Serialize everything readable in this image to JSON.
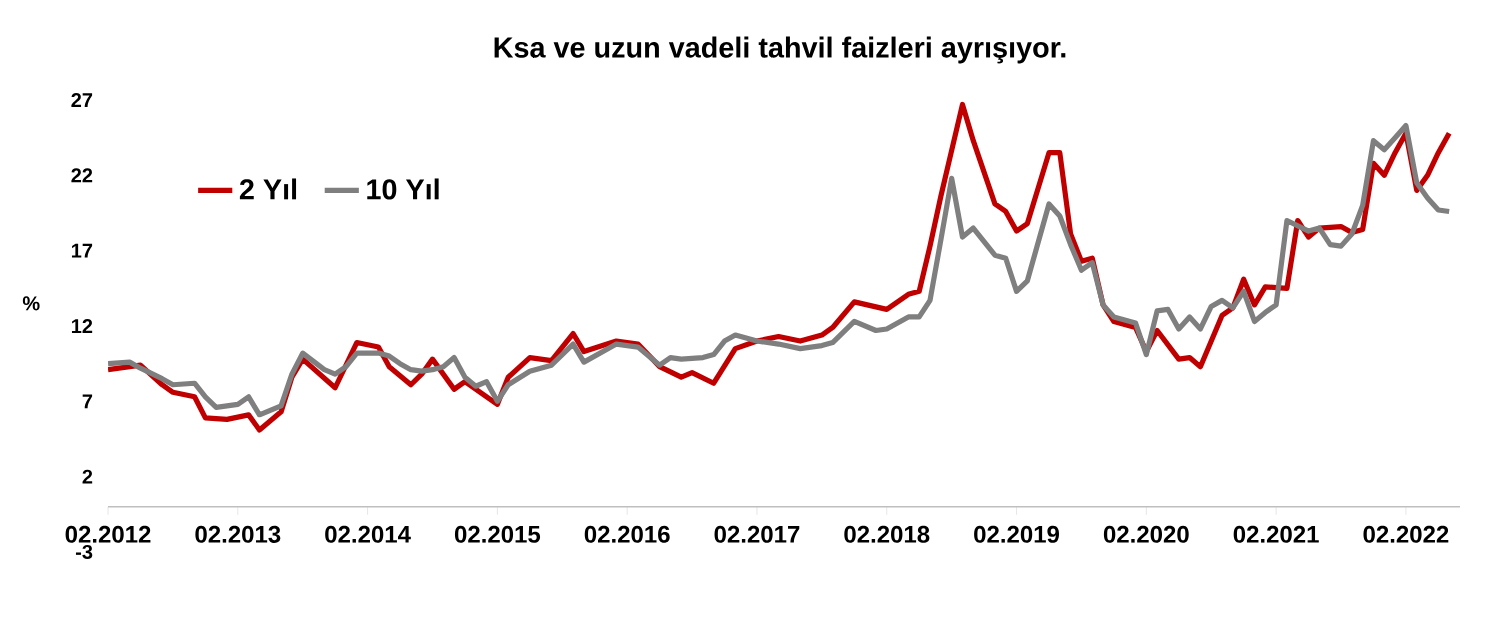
{
  "chart_data": {
    "type": "line",
    "title": "Ksa ve uzun vadeli tahvil faizleri ayrışıyor.",
    "ylabel": "%",
    "xlim": [
      "2012-02",
      "2022-07"
    ],
    "ylim": [
      -3,
      27
    ],
    "yticks": [
      -3,
      2,
      7,
      12,
      17,
      22,
      27
    ],
    "xticks": [
      {
        "value": "2012-02",
        "label": "02.2012"
      },
      {
        "value": "2013-02",
        "label": "02.2013"
      },
      {
        "value": "2014-02",
        "label": "02.2014"
      },
      {
        "value": "2015-02",
        "label": "02.2015"
      },
      {
        "value": "2016-02",
        "label": "02.2016"
      },
      {
        "value": "2017-02",
        "label": "02.2017"
      },
      {
        "value": "2018-02",
        "label": "02.2018"
      },
      {
        "value": "2019-02",
        "label": "02.2019"
      },
      {
        "value": "2020-02",
        "label": "02.2020"
      },
      {
        "value": "2021-02",
        "label": "02.2021"
      },
      {
        "value": "2022-02",
        "label": "02.2022"
      }
    ],
    "legend": "top left",
    "grid": false,
    "marker": "none",
    "line_style": "solid",
    "series": [
      {
        "name": "2 Yıl",
        "color": "#c00000",
        "x": [
          "2012-02",
          "2012-05",
          "2012-07",
          "2012-08",
          "2012-10",
          "2012-11",
          "2013-01",
          "2013-03",
          "2013-04",
          "2013-06",
          "2013-07",
          "2013-08",
          "2013-11",
          "2014-01",
          "2014-03",
          "2014-04",
          "2014-06",
          "2014-07",
          "2014-08",
          "2014-10",
          "2014-11",
          "2015-02",
          "2015-03",
          "2015-05",
          "2015-07",
          "2015-09",
          "2015-10",
          "2016-01",
          "2016-03",
          "2016-05",
          "2016-07",
          "2016-08",
          "2016-10",
          "2016-12",
          "2017-02",
          "2017-04",
          "2017-06",
          "2017-08",
          "2017-09",
          "2017-11",
          "2018-02",
          "2018-04",
          "2018-05",
          "2018-06",
          "2018-07",
          "2018-09",
          "2018-10",
          "2018-12",
          "2019-01",
          "2019-02",
          "2019-03",
          "2019-05",
          "2019-06",
          "2019-07",
          "2019-08",
          "2019-09",
          "2019-10",
          "2019-11",
          "2020-01",
          "2020-02",
          "2020-03",
          "2020-05",
          "2020-06",
          "2020-07",
          "2020-09",
          "2020-10",
          "2020-11",
          "2020-12",
          "2021-01",
          "2021-03",
          "2021-04",
          "2021-05",
          "2021-06",
          "2021-08",
          "2021-09",
          "2021-10",
          "2021-11",
          "2021-12",
          "2022-01",
          "2022-02",
          "2022-03",
          "2022-04",
          "2022-05",
          "2022-06"
        ],
        "values": [
          9.1,
          9.4,
          8.1,
          7.6,
          7.3,
          5.9,
          5.8,
          6.1,
          5.1,
          6.3,
          8.6,
          9.8,
          7.9,
          10.9,
          10.6,
          9.3,
          8.1,
          8.8,
          9.8,
          7.8,
          8.3,
          6.8,
          8.6,
          9.9,
          9.7,
          11.5,
          10.3,
          11.0,
          10.8,
          9.3,
          8.6,
          8.9,
          8.2,
          10.5,
          11.0,
          11.3,
          11.0,
          11.4,
          11.9,
          13.6,
          13.1,
          14.1,
          14.3,
          17.3,
          20.6,
          26.7,
          24.3,
          20.1,
          19.6,
          18.3,
          18.8,
          23.5,
          23.5,
          18.1,
          16.3,
          16.5,
          13.4,
          12.3,
          11.9,
          10.3,
          11.7,
          9.8,
          9.9,
          9.3,
          12.7,
          13.2,
          15.1,
          13.4,
          14.6,
          14.5,
          19.0,
          17.9,
          18.5,
          18.6,
          18.2,
          18.4,
          22.8,
          22.0,
          23.5,
          24.8,
          21.0,
          22.0,
          23.5,
          24.8
        ]
      },
      {
        "name": "10 Yıl",
        "color": "#7f7f7f",
        "x": [
          "2012-02",
          "2012-04",
          "2012-05",
          "2012-07",
          "2012-08",
          "2012-10",
          "2012-11",
          "2012-12",
          "2013-02",
          "2013-03",
          "2013-04",
          "2013-06",
          "2013-07",
          "2013-08",
          "2013-10",
          "2013-11",
          "2013-12",
          "2014-01",
          "2014-03",
          "2014-04",
          "2014-05",
          "2014-06",
          "2014-07",
          "2014-08",
          "2014-09",
          "2014-10",
          "2014-11",
          "2014-12",
          "2015-01",
          "2015-02",
          "2015-03",
          "2015-05",
          "2015-07",
          "2015-09",
          "2015-10",
          "2016-01",
          "2016-03",
          "2016-05",
          "2016-06",
          "2016-07",
          "2016-09",
          "2016-10",
          "2016-11",
          "2016-12",
          "2017-02",
          "2017-04",
          "2017-06",
          "2017-08",
          "2017-09",
          "2017-11",
          "2018-01",
          "2018-02",
          "2018-04",
          "2018-05",
          "2018-06",
          "2018-07",
          "2018-08",
          "2018-09",
          "2018-10",
          "2018-12",
          "2019-01",
          "2019-02",
          "2019-03",
          "2019-05",
          "2019-06",
          "2019-07",
          "2019-08",
          "2019-09",
          "2019-10",
          "2019-11",
          "2020-01",
          "2020-02",
          "2020-03",
          "2020-04",
          "2020-05",
          "2020-06",
          "2020-07",
          "2020-08",
          "2020-09",
          "2020-10",
          "2020-11",
          "2020-12",
          "2021-01",
          "2021-02",
          "2021-03",
          "2021-05",
          "2021-06",
          "2021-07",
          "2021-08",
          "2021-09",
          "2021-10",
          "2021-11",
          "2021-12",
          "2022-01",
          "2022-02",
          "2022-03",
          "2022-04",
          "2022-05",
          "2022-06"
        ],
        "values": [
          9.5,
          9.6,
          9.2,
          8.5,
          8.1,
          8.2,
          7.3,
          6.6,
          6.8,
          7.3,
          6.1,
          6.7,
          8.8,
          10.2,
          9.1,
          8.8,
          9.3,
          10.2,
          10.2,
          10.0,
          9.5,
          9.1,
          9.0,
          9.1,
          9.3,
          9.9,
          8.6,
          8.0,
          8.3,
          7.0,
          8.1,
          9.0,
          9.4,
          10.8,
          9.6,
          10.8,
          10.6,
          9.4,
          9.9,
          9.8,
          9.9,
          10.1,
          11.0,
          11.4,
          11.0,
          10.8,
          10.5,
          10.7,
          10.9,
          12.3,
          11.7,
          11.8,
          12.6,
          12.6,
          13.7,
          17.7,
          21.8,
          17.9,
          18.5,
          16.7,
          16.5,
          14.3,
          15.0,
          20.1,
          19.3,
          17.4,
          15.7,
          16.2,
          13.4,
          12.6,
          12.2,
          10.1,
          13.0,
          13.1,
          11.8,
          12.6,
          11.8,
          13.3,
          13.7,
          13.2,
          14.3,
          12.3,
          12.9,
          13.4,
          19.0,
          18.3,
          18.5,
          17.4,
          17.3,
          18.1,
          20.0,
          24.3,
          23.7,
          24.5,
          25.3,
          21.5,
          20.5,
          19.7,
          19.6
        ]
      }
    ]
  }
}
